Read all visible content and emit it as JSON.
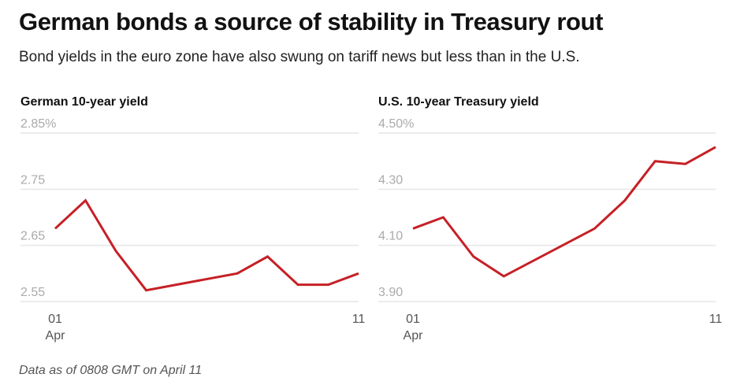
{
  "header": {
    "title": "German bonds a source of stability in Treasury rout",
    "subtitle": "Bond yields in the euro zone have also swung on tariff news but less than in the U.S."
  },
  "footnote": "Data as of 0808 GMT on April 11",
  "colors": {
    "line": "#c62026",
    "grid": "#e6e6e6",
    "tick": "#aaaaaa"
  },
  "chart_data": [
    {
      "type": "line",
      "title": "German 10-year yield",
      "xlabel": "",
      "ylabel": "",
      "x": [
        1,
        2,
        3,
        4,
        7,
        8,
        9,
        10,
        11
      ],
      "x_range": [
        1,
        11
      ],
      "x_ticks": [
        {
          "value": 1,
          "label": "01",
          "sublabel": "Apr"
        },
        {
          "value": 11,
          "label": "11",
          "sublabel": ""
        }
      ],
      "ylim": [
        2.55,
        2.85
      ],
      "y_ticks": [
        {
          "value": 2.85,
          "label": "2.85%"
        },
        {
          "value": 2.75,
          "label": "2.75"
        },
        {
          "value": 2.65,
          "label": "2.65"
        },
        {
          "value": 2.55,
          "label": "2.55"
        }
      ],
      "grid": true,
      "series": [
        {
          "name": "German 10-year yield",
          "values": [
            2.68,
            2.73,
            2.64,
            2.57,
            2.6,
            2.63,
            2.58,
            2.58,
            2.6
          ]
        }
      ]
    },
    {
      "type": "line",
      "title": "U.S. 10-year Treasury yield",
      "xlabel": "",
      "ylabel": "",
      "x": [
        1,
        2,
        3,
        4,
        7,
        8,
        9,
        10,
        11
      ],
      "x_range": [
        1,
        11
      ],
      "x_ticks": [
        {
          "value": 1,
          "label": "01",
          "sublabel": "Apr"
        },
        {
          "value": 11,
          "label": "11",
          "sublabel": ""
        }
      ],
      "ylim": [
        3.9,
        4.5
      ],
      "y_ticks": [
        {
          "value": 4.5,
          "label": "4.50%"
        },
        {
          "value": 4.3,
          "label": "4.30"
        },
        {
          "value": 4.1,
          "label": "4.10"
        },
        {
          "value": 3.9,
          "label": "3.90"
        }
      ],
      "grid": true,
      "series": [
        {
          "name": "U.S. 10-year Treasury yield",
          "values": [
            4.16,
            4.2,
            4.06,
            3.99,
            4.16,
            4.26,
            4.4,
            4.39,
            4.45
          ]
        }
      ]
    }
  ]
}
